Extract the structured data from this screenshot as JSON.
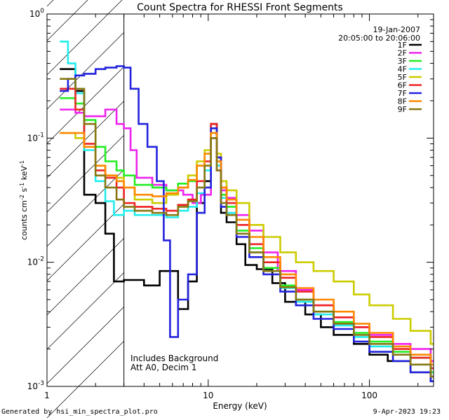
{
  "chart_data": {
    "type": "line",
    "title": "Count Spectra for RHESSI Front Segments",
    "xlabel": "Energy (keV)",
    "ylabel": "counts cm-2 s-1 keV-1",
    "ylabel_parts": {
      "pre": "counts cm",
      "e1": "-2",
      "mid": " s",
      "e2": "-1",
      "mid2": " keV",
      "e3": "-1"
    },
    "xscale": "log",
    "yscale": "log",
    "xlim": [
      1,
      250
    ],
    "ylim": [
      0.001,
      1
    ],
    "x_ticks": [
      {
        "v": 1,
        "label": "1"
      },
      {
        "v": 10,
        "label": "10"
      },
      {
        "v": 100,
        "label": "100"
      }
    ],
    "y_ticks": [
      {
        "v": 1,
        "base": "10",
        "exp": "0"
      },
      {
        "v": 0.1,
        "base": "10",
        "exp": "-1"
      },
      {
        "v": 0.01,
        "base": "10",
        "exp": "-2"
      },
      {
        "v": 0.001,
        "base": "10",
        "exp": "-3"
      }
    ],
    "date": "19-Jan-2007",
    "time_range": "20:05:00 to 20:06:00",
    "annotations": [
      "Includes Background",
      "Att A0, Decim 1"
    ],
    "excluded_region_keV": [
      1,
      3
    ],
    "legend_position": "top-right",
    "series": [
      {
        "name": "1F",
        "color": "#000000",
        "values": [
          [
            1.2,
            0.36
          ],
          [
            1.5,
            0.24
          ],
          [
            1.7,
            0.035
          ],
          [
            2.0,
            0.03
          ],
          [
            2.3,
            0.017
          ],
          [
            2.6,
            0.007
          ],
          [
            3.0,
            0.0072
          ],
          [
            4.0,
            0.0065
          ],
          [
            5.0,
            0.0085
          ],
          [
            6.5,
            0.0042
          ],
          [
            7.5,
            0.007
          ],
          [
            8.5,
            0.03
          ],
          [
            9.5,
            0.045
          ],
          [
            10.4,
            0.13
          ],
          [
            11.3,
            0.07
          ],
          [
            12,
            0.025
          ],
          [
            13,
            0.021
          ],
          [
            15,
            0.014
          ],
          [
            17,
            0.0095
          ],
          [
            20,
            0.0088
          ],
          [
            25,
            0.0068
          ],
          [
            30,
            0.0048
          ],
          [
            40,
            0.0038
          ],
          [
            50,
            0.003
          ],
          [
            60,
            0.0026
          ],
          [
            80,
            0.0022
          ],
          [
            100,
            0.0018
          ],
          [
            130,
            0.0016
          ],
          [
            180,
            0.0013
          ],
          [
            240,
            0.0011
          ]
        ]
      },
      {
        "name": "2F",
        "color": "#ee22ee",
        "values": [
          [
            1.2,
            0.17
          ],
          [
            1.5,
            0.16
          ],
          [
            1.7,
            0.15
          ],
          [
            2.0,
            0.15
          ],
          [
            2.3,
            0.17
          ],
          [
            2.7,
            0.13
          ],
          [
            3.0,
            0.12
          ],
          [
            3.3,
            0.08
          ],
          [
            3.6,
            0.048
          ],
          [
            4.5,
            0.042
          ],
          [
            5.5,
            0.038
          ],
          [
            7,
            0.035
          ],
          [
            8,
            0.03
          ],
          [
            9,
            0.035
          ],
          [
            10.4,
            0.1
          ],
          [
            11.3,
            0.055
          ],
          [
            12,
            0.038
          ],
          [
            13,
            0.033
          ],
          [
            15,
            0.024
          ],
          [
            18,
            0.018
          ],
          [
            22,
            0.012
          ],
          [
            27,
            0.0085
          ],
          [
            35,
            0.006
          ],
          [
            45,
            0.0045
          ],
          [
            60,
            0.0036
          ],
          [
            80,
            0.003
          ],
          [
            100,
            0.0026
          ],
          [
            140,
            0.0022
          ],
          [
            180,
            0.002
          ],
          [
            240,
            0.0016
          ]
        ]
      },
      {
        "name": "3F",
        "color": "#22ee22",
        "values": [
          [
            1.2,
            0.21
          ],
          [
            1.5,
            0.19
          ],
          [
            1.7,
            0.14
          ],
          [
            2.0,
            0.085
          ],
          [
            2.3,
            0.065
          ],
          [
            2.7,
            0.055
          ],
          [
            3.0,
            0.05
          ],
          [
            3.5,
            0.042
          ],
          [
            4.5,
            0.04
          ],
          [
            5.5,
            0.038
          ],
          [
            6.5,
            0.043
          ],
          [
            7.5,
            0.045
          ],
          [
            8.5,
            0.06
          ],
          [
            9.5,
            0.075
          ],
          [
            10.4,
            0.11
          ],
          [
            11.3,
            0.06
          ],
          [
            12,
            0.035
          ],
          [
            13,
            0.028
          ],
          [
            15,
            0.018
          ],
          [
            18,
            0.013
          ],
          [
            22,
            0.009
          ],
          [
            28,
            0.0065
          ],
          [
            35,
            0.005
          ],
          [
            45,
            0.004
          ],
          [
            60,
            0.0033
          ],
          [
            80,
            0.0027
          ],
          [
            100,
            0.0023
          ],
          [
            140,
            0.0019
          ],
          [
            180,
            0.0017
          ],
          [
            240,
            0.0013
          ]
        ]
      },
      {
        "name": "4F",
        "color": "#22eeee",
        "values": [
          [
            1.2,
            0.6
          ],
          [
            1.35,
            0.4
          ],
          [
            1.5,
            0.23
          ],
          [
            1.7,
            0.08
          ],
          [
            2.0,
            0.045
          ],
          [
            2.3,
            0.031
          ],
          [
            2.6,
            0.024
          ],
          [
            3.0,
            0.026
          ],
          [
            3.5,
            0.024
          ],
          [
            4.5,
            0.024
          ],
          [
            5.5,
            0.023
          ],
          [
            6.5,
            0.026
          ],
          [
            7.5,
            0.028
          ],
          [
            8.5,
            0.036
          ],
          [
            9.5,
            0.055
          ],
          [
            10.4,
            0.1
          ],
          [
            11.3,
            0.06
          ],
          [
            12,
            0.033
          ],
          [
            13,
            0.025
          ],
          [
            15,
            0.017
          ],
          [
            18,
            0.012
          ],
          [
            22,
            0.0085
          ],
          [
            28,
            0.0062
          ],
          [
            35,
            0.0048
          ],
          [
            45,
            0.0038
          ],
          [
            60,
            0.0031
          ],
          [
            80,
            0.0025
          ],
          [
            100,
            0.0021
          ],
          [
            140,
            0.0018
          ],
          [
            180,
            0.0015
          ],
          [
            240,
            0.0012
          ]
        ]
      },
      {
        "name": "5F",
        "color": "#cccc00",
        "values": [
          [
            1.2,
            0.11
          ],
          [
            1.5,
            0.1
          ],
          [
            1.7,
            0.085
          ],
          [
            2.0,
            0.06
          ],
          [
            2.3,
            0.05
          ],
          [
            2.7,
            0.048
          ],
          [
            3.0,
            0.04
          ],
          [
            3.5,
            0.032
          ],
          [
            4.5,
            0.03
          ],
          [
            5.5,
            0.035
          ],
          [
            6.5,
            0.04
          ],
          [
            7.5,
            0.05
          ],
          [
            8.5,
            0.065
          ],
          [
            9.5,
            0.08
          ],
          [
            10.4,
            0.12
          ],
          [
            11.3,
            0.075
          ],
          [
            12,
            0.045
          ],
          [
            13,
            0.038
          ],
          [
            15,
            0.03
          ],
          [
            18,
            0.02
          ],
          [
            22,
            0.016
          ],
          [
            28,
            0.012
          ],
          [
            35,
            0.01
          ],
          [
            45,
            0.0085
          ],
          [
            60,
            0.007
          ],
          [
            80,
            0.0055
          ],
          [
            100,
            0.0045
          ],
          [
            140,
            0.0035
          ],
          [
            180,
            0.0028
          ],
          [
            240,
            0.0022
          ]
        ]
      },
      {
        "name": "6F",
        "color": "#ee2222",
        "values": [
          [
            1.2,
            0.25
          ],
          [
            1.5,
            0.17
          ],
          [
            1.7,
            0.09
          ],
          [
            2.0,
            0.055
          ],
          [
            2.3,
            0.048
          ],
          [
            2.7,
            0.04
          ],
          [
            3.0,
            0.03
          ],
          [
            3.5,
            0.028
          ],
          [
            4.5,
            0.027
          ],
          [
            5.5,
            0.026
          ],
          [
            6.5,
            0.029
          ],
          [
            7.5,
            0.032
          ],
          [
            8.5,
            0.045
          ],
          [
            9.5,
            0.065
          ],
          [
            10.4,
            0.13
          ],
          [
            11.3,
            0.07
          ],
          [
            12,
            0.04
          ],
          [
            13,
            0.03
          ],
          [
            15,
            0.02
          ],
          [
            18,
            0.014
          ],
          [
            22,
            0.01
          ],
          [
            28,
            0.0075
          ],
          [
            35,
            0.0058
          ],
          [
            45,
            0.0045
          ],
          [
            60,
            0.0036
          ],
          [
            80,
            0.003
          ],
          [
            100,
            0.0025
          ],
          [
            140,
            0.002
          ],
          [
            180,
            0.0017
          ],
          [
            240,
            0.0014
          ]
        ]
      },
      {
        "name": "7F",
        "color": "#2222dd",
        "values": [
          [
            1.2,
            0.24
          ],
          [
            1.35,
            0.3
          ],
          [
            1.5,
            0.32
          ],
          [
            1.7,
            0.33
          ],
          [
            2.0,
            0.36
          ],
          [
            2.3,
            0.37
          ],
          [
            2.7,
            0.38
          ],
          [
            3.0,
            0.37
          ],
          [
            3.3,
            0.25
          ],
          [
            3.7,
            0.13
          ],
          [
            4.2,
            0.085
          ],
          [
            4.8,
            0.045
          ],
          [
            5.3,
            0.015
          ],
          [
            5.8,
            0.0025
          ],
          [
            6.5,
            0.005
          ],
          [
            7.5,
            0.008
          ],
          [
            8.5,
            0.025
          ],
          [
            9.5,
            0.04
          ],
          [
            10.4,
            0.12
          ],
          [
            11.3,
            0.07
          ],
          [
            12,
            0.028
          ],
          [
            13,
            0.024
          ],
          [
            15,
            0.016
          ],
          [
            18,
            0.011
          ],
          [
            22,
            0.008
          ],
          [
            28,
            0.0058
          ],
          [
            35,
            0.0045
          ],
          [
            45,
            0.0035
          ],
          [
            60,
            0.0029
          ],
          [
            80,
            0.0023
          ],
          [
            100,
            0.0019
          ],
          [
            140,
            0.0016
          ],
          [
            180,
            0.0013
          ],
          [
            240,
            0.0011
          ]
        ]
      },
      {
        "name": "8F",
        "color": "#ff8800",
        "values": [
          [
            1.2,
            0.11
          ],
          [
            1.5,
            0.11
          ],
          [
            1.7,
            0.085
          ],
          [
            2.0,
            0.06
          ],
          [
            2.3,
            0.05
          ],
          [
            2.7,
            0.045
          ],
          [
            3.0,
            0.04
          ],
          [
            3.5,
            0.035
          ],
          [
            4.5,
            0.034
          ],
          [
            5.5,
            0.036
          ],
          [
            6.5,
            0.04
          ],
          [
            7.5,
            0.046
          ],
          [
            8.5,
            0.06
          ],
          [
            9.5,
            0.075
          ],
          [
            10.4,
            0.11
          ],
          [
            11.3,
            0.065
          ],
          [
            12,
            0.04
          ],
          [
            13,
            0.032
          ],
          [
            15,
            0.022
          ],
          [
            18,
            0.016
          ],
          [
            22,
            0.011
          ],
          [
            28,
            0.008
          ],
          [
            35,
            0.0062
          ],
          [
            45,
            0.005
          ],
          [
            60,
            0.004
          ],
          [
            80,
            0.0032
          ],
          [
            100,
            0.0027
          ],
          [
            140,
            0.0021
          ],
          [
            180,
            0.0018
          ],
          [
            240,
            0.0015
          ]
        ]
      },
      {
        "name": "9F",
        "color": "#887711",
        "values": [
          [
            1.2,
            0.3
          ],
          [
            1.5,
            0.25
          ],
          [
            1.7,
            0.13
          ],
          [
            2.0,
            0.05
          ],
          [
            2.3,
            0.04
          ],
          [
            2.7,
            0.032
          ],
          [
            3.0,
            0.028
          ],
          [
            3.5,
            0.026
          ],
          [
            4.5,
            0.025
          ],
          [
            5.5,
            0.024
          ],
          [
            6.5,
            0.028
          ],
          [
            7.5,
            0.031
          ],
          [
            8.5,
            0.04
          ],
          [
            9.5,
            0.06
          ],
          [
            10.4,
            0.1
          ],
          [
            11.3,
            0.055
          ],
          [
            12,
            0.03
          ],
          [
            13,
            0.024
          ],
          [
            15,
            0.017
          ],
          [
            18,
            0.012
          ],
          [
            22,
            0.0085
          ],
          [
            28,
            0.0063
          ],
          [
            35,
            0.005
          ],
          [
            45,
            0.004
          ],
          [
            60,
            0.0032
          ],
          [
            80,
            0.0026
          ],
          [
            100,
            0.0022
          ],
          [
            140,
            0.0018
          ],
          [
            180,
            0.0015
          ],
          [
            240,
            0.0012
          ]
        ]
      }
    ]
  },
  "footer": {
    "generated_by": "Generated by hsi_min_spectra_plot.pro",
    "timestamp": "9-Apr-2023 19:23"
  }
}
